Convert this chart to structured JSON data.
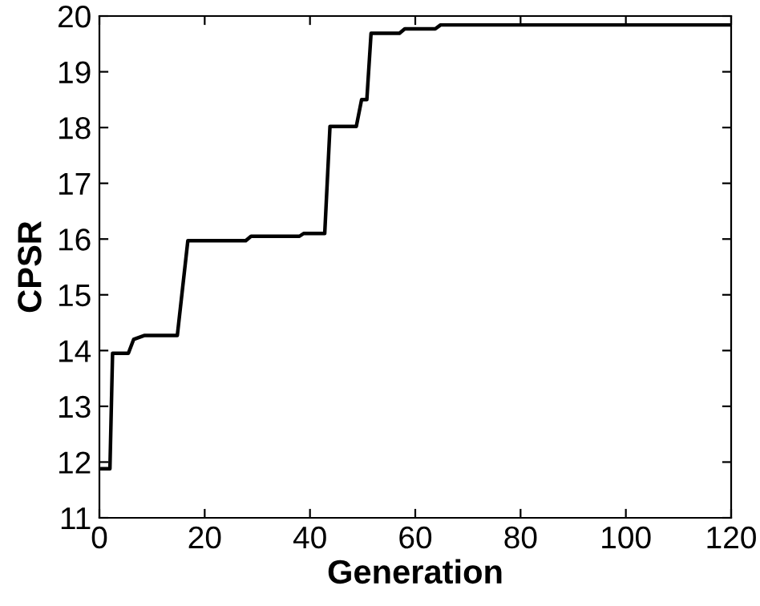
{
  "chart_data": {
    "type": "line",
    "xlabel": "Generation",
    "ylabel": "CPSR",
    "x": [
      0.5,
      2,
      2.5,
      5.5,
      6.5,
      8.5,
      14.8,
      16.8,
      27.8,
      28.8,
      38,
      38.8,
      42.8,
      43.8,
      48.8,
      49.8,
      50.8,
      51.6,
      57,
      58,
      63.8,
      64.8,
      120
    ],
    "series": [
      {
        "color": "#000000",
        "values": [
          11.88,
          11.88,
          13.95,
          13.95,
          14.2,
          14.27,
          14.27,
          15.97,
          15.97,
          16.05,
          16.05,
          16.1,
          16.1,
          18.02,
          18.02,
          18.5,
          18.5,
          19.69,
          19.69,
          19.77,
          19.77,
          19.84,
          19.84
        ]
      }
    ],
    "xlim": [
      0,
      120
    ],
    "ylim": [
      11,
      20
    ],
    "xticks": [
      0,
      20,
      40,
      60,
      80,
      100,
      120
    ],
    "yticks": [
      11,
      12,
      13,
      14,
      15,
      16,
      17,
      18,
      19,
      20
    ],
    "grid": false,
    "legend": false,
    "marker": "none",
    "line_style": "solid"
  }
}
